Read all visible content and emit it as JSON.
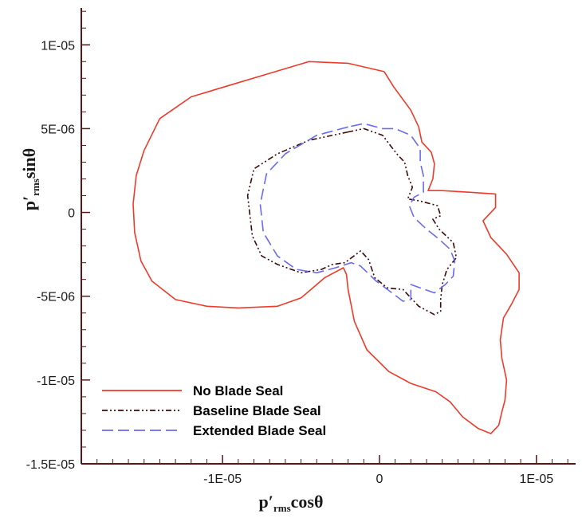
{
  "chart_data": {
    "type": "line",
    "x_axis": {
      "range": [
        -1.9e-05,
        1.25e-05
      ],
      "ticks": [
        -1e-05,
        0,
        1e-05
      ],
      "tick_labels": [
        "-1E-05",
        "0",
        "1E-05"
      ],
      "label_main": "p′",
      "label_sub": "rms",
      "label_tail": "cosθ"
    },
    "y_axis": {
      "range": [
        -1.5e-05,
        1.22e-05
      ],
      "ticks": [
        -1.5e-05,
        -1e-05,
        -5e-06,
        0,
        5e-06,
        1e-05
      ],
      "tick_labels": [
        "-1.5E-05",
        "-1E-05",
        "-5E-06",
        "0",
        "5E-06",
        "1E-05"
      ],
      "label_main": "p′",
      "label_sub": "rms",
      "label_tail": "sinθ"
    },
    "grid": false,
    "legend_position": "bottom-left",
    "series": [
      {
        "name": "No Blade Seal",
        "color": "#ee3a2a",
        "dash": "solid",
        "points": [
          [
            3e-07,
            8.4e-06
          ],
          [
            -2e-06,
            8.9e-06
          ],
          [
            -4.5e-06,
            9e-06
          ],
          [
            -7e-06,
            8.3e-06
          ],
          [
            -9.5e-06,
            7.6e-06
          ],
          [
            -1.2e-05,
            6.9e-06
          ],
          [
            -1.4e-05,
            5.6e-06
          ],
          [
            -1.5e-05,
            3.7e-06
          ],
          [
            -1.55e-05,
            2.2e-06
          ],
          [
            -1.57e-05,
            5e-07
          ],
          [
            -1.56e-05,
            -1.2e-06
          ],
          [
            -1.52e-05,
            -2.9e-06
          ],
          [
            -1.45e-05,
            -4.1e-06
          ],
          [
            -1.3e-05,
            -5.2e-06
          ],
          [
            -1.1e-05,
            -5.6e-06
          ],
          [
            -9e-06,
            -5.7e-06
          ],
          [
            -6.5e-06,
            -5.6e-06
          ],
          [
            -5e-06,
            -5.1e-06
          ],
          [
            -3.5e-06,
            -3.9e-06
          ],
          [
            -2.3e-06,
            -3.3e-06
          ],
          [
            -2.1e-06,
            -3.7e-06
          ],
          [
            -2e-06,
            -4.6e-06
          ],
          [
            -1.6e-06,
            -6.5e-06
          ],
          [
            -8e-07,
            -8.2e-06
          ],
          [
            6e-07,
            -9.5e-06
          ],
          [
            2e-06,
            -1.02e-05
          ],
          [
            3.6e-06,
            -1.07e-05
          ],
          [
            4.5e-06,
            -1.13e-05
          ],
          [
            5.3e-06,
            -1.22e-05
          ],
          [
            6.3e-06,
            -1.29e-05
          ],
          [
            7.1e-06,
            -1.32e-05
          ],
          [
            7.6e-06,
            -1.27e-05
          ],
          [
            7.8e-06,
            -1.19e-05
          ],
          [
            8e-06,
            -1.12e-05
          ],
          [
            8.1e-06,
            -1e-05
          ],
          [
            7.8e-06,
            -8.7e-06
          ],
          [
            7.7e-06,
            -7.6e-06
          ],
          [
            7.9e-06,
            -6.3e-06
          ],
          [
            8.4e-06,
            -5.5e-06
          ],
          [
            8.9e-06,
            -4.6e-06
          ],
          [
            8.9e-06,
            -3.6e-06
          ],
          [
            8.1e-06,
            -2.5e-06
          ],
          [
            7.1e-06,
            -1.5e-06
          ],
          [
            6.6e-06,
            -5e-07
          ],
          [
            7.4e-06,
            3e-07
          ],
          [
            7.4e-06,
            1.1e-06
          ],
          [
            5.8e-06,
            1.2e-06
          ],
          [
            4e-06,
            1.3e-06
          ],
          [
            3.1e-06,
            1.3e-06
          ],
          [
            3.4e-06,
            2e-06
          ],
          [
            3.5e-06,
            2.9e-06
          ],
          [
            3.3e-06,
            3.6e-06
          ],
          [
            2.7e-06,
            4.2e-06
          ],
          [
            2.5e-06,
            5.1e-06
          ],
          [
            2e-06,
            6.1e-06
          ],
          [
            9e-07,
            7.5e-06
          ],
          [
            3e-07,
            8.4e-06
          ]
        ]
      },
      {
        "name": "Baseline Blade Seal",
        "color": "#3a0a0a",
        "dash": "7 3 2 3 2 3",
        "points": [
          [
            -2e-06,
            4.8e-06
          ],
          [
            -4.5e-06,
            4.3e-06
          ],
          [
            -6.5e-06,
            3.5e-06
          ],
          [
            -8e-06,
            2.6e-06
          ],
          [
            -8.4e-06,
            1e-06
          ],
          [
            -8.1e-06,
            -1.4e-06
          ],
          [
            -7.5e-06,
            -2.6e-06
          ],
          [
            -6.5e-06,
            -3.1e-06
          ],
          [
            -5e-06,
            -3.6e-06
          ],
          [
            -3.7e-06,
            -3.4e-06
          ],
          [
            -3e-06,
            -3.1e-06
          ],
          [
            -2.2e-06,
            -3e-06
          ],
          [
            -1.2e-06,
            -2.3e-06
          ],
          [
            -7e-07,
            -2.8e-06
          ],
          [
            -3e-07,
            -3.9e-06
          ],
          [
            5e-07,
            -4.5e-06
          ],
          [
            1.5e-06,
            -4.6e-06
          ],
          [
            2.5e-06,
            -5.6e-06
          ],
          [
            3.5e-06,
            -6.1e-06
          ],
          [
            3.9e-06,
            -5.9e-06
          ],
          [
            3.9e-06,
            -5.2e-06
          ],
          [
            4e-06,
            -4.3e-06
          ],
          [
            4.3e-06,
            -3.4e-06
          ],
          [
            4.9e-06,
            -2.7e-06
          ],
          [
            4.7e-06,
            -1.8e-06
          ],
          [
            3.8e-06,
            -1e-06
          ],
          [
            3.4e-06,
            -4e-07
          ],
          [
            3.9e-06,
            -2e-07
          ],
          [
            3.7e-06,
            4e-07
          ],
          [
            2.5e-06,
            7e-07
          ],
          [
            1.8e-06,
            8e-07
          ],
          [
            2.1e-06,
            1.5e-06
          ],
          [
            1.8e-06,
            2.2e-06
          ],
          [
            1.6e-06,
            3e-06
          ],
          [
            1.1e-06,
            3.5e-06
          ],
          [
            2e-07,
            4.6e-06
          ],
          [
            -1e-06,
            5e-06
          ],
          [
            -2e-06,
            4.8e-06
          ]
        ]
      },
      {
        "name": "Extended Blade Seal",
        "color": "#6a6af0",
        "dash": "14 6",
        "points": [
          [
            -2e-06,
            5.1e-06
          ],
          [
            -4e-06,
            4.6e-06
          ],
          [
            -6e-06,
            3.5e-06
          ],
          [
            -7.2e-06,
            2.3e-06
          ],
          [
            -7.6e-06,
            5e-07
          ],
          [
            -7.4e-06,
            -1.2e-06
          ],
          [
            -6.5e-06,
            -2.6e-06
          ],
          [
            -5.3e-06,
            -3.4e-06
          ],
          [
            -4e-06,
            -3.6e-06
          ],
          [
            -2.8e-06,
            -3.3e-06
          ],
          [
            -1.8e-06,
            -3e-06
          ],
          [
            -1.2e-06,
            -3.2e-06
          ],
          [
            -2e-07,
            -4.1e-06
          ],
          [
            8e-07,
            -4.8e-06
          ],
          [
            1.5e-06,
            -5.3e-06
          ],
          [
            2e-06,
            -5.2e-06
          ],
          [
            2e-06,
            -4.3e-06
          ],
          [
            2.6e-06,
            -4.5e-06
          ],
          [
            3.5e-06,
            -4.8e-06
          ],
          [
            4.2e-06,
            -4.3e-06
          ],
          [
            4.7e-06,
            -3.8e-06
          ],
          [
            4.8e-06,
            -2.9e-06
          ],
          [
            4.5e-06,
            -2.2e-06
          ],
          [
            3.8e-06,
            -1.6e-06
          ],
          [
            3e-06,
            -1e-06
          ],
          [
            2.2e-06,
            -3e-07
          ],
          [
            1.9e-06,
            4e-07
          ],
          [
            2.2e-06,
            9e-07
          ],
          [
            2.8e-06,
            1.2e-06
          ],
          [
            2.8e-06,
            2.2e-06
          ],
          [
            2.6e-06,
            3e-06
          ],
          [
            2.6e-06,
            3.8e-06
          ],
          [
            2e-06,
            4.6e-06
          ],
          [
            1e-06,
            5e-06
          ],
          [
            2e-07,
            5e-06
          ],
          [
            -1e-06,
            5.3e-06
          ],
          [
            -2e-06,
            5.1e-06
          ]
        ]
      }
    ]
  }
}
